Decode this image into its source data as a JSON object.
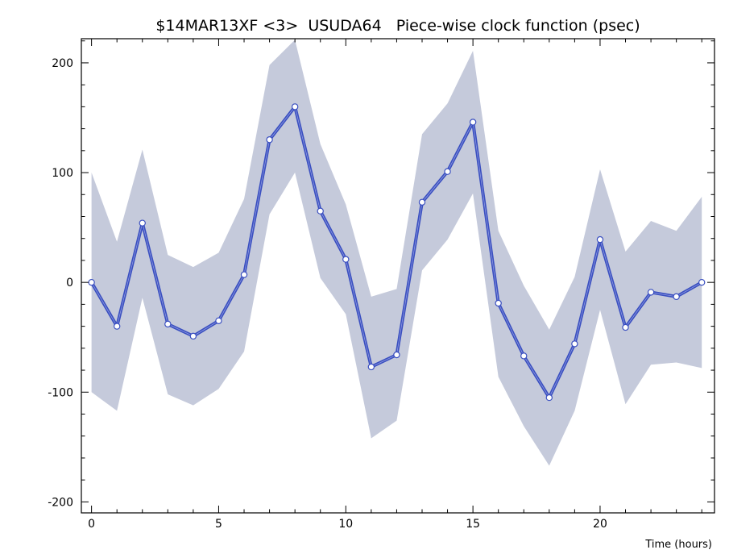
{
  "chart_data": {
    "type": "line",
    "title": "$14MAR13XF <3>  USUDA64   Piece-wise clock function (psec)",
    "xlabel": "Time (hours)",
    "ylabel": "",
    "xlim": [
      -0.4,
      24.5
    ],
    "ylim": [
      -210,
      222
    ],
    "x_ticks": [
      0,
      5,
      10,
      15,
      20
    ],
    "x_tick_labels": [
      "0",
      "5",
      "10",
      "15",
      "20"
    ],
    "y_ticks": [
      -200,
      -100,
      0,
      100,
      200
    ],
    "y_tick_labels": [
      "-200",
      "-100",
      "0",
      "100",
      "200"
    ],
    "grid": false,
    "legend": "none",
    "colors": {
      "line": "#3a4fc0",
      "band": "#c5cadb",
      "marker_fill": "#ffffff",
      "axis": "#000000"
    },
    "series": [
      {
        "x": [
          0,
          1,
          2,
          3,
          4,
          5,
          6,
          7,
          8,
          9,
          10,
          11,
          12,
          13,
          14,
          15,
          16,
          17,
          18,
          19,
          20,
          21,
          22,
          23,
          24
        ],
        "values": [
          0,
          -40,
          54,
          -38,
          -49,
          -35,
          7,
          130,
          160,
          65,
          21,
          -77,
          -66,
          73,
          101,
          146,
          -19,
          -67,
          -105,
          -56,
          39,
          -41,
          -9,
          -13,
          0
        ],
        "upper": [
          100,
          37,
          121,
          25,
          14,
          27,
          76,
          198,
          221,
          126,
          71,
          -13,
          -6,
          135,
          163,
          211,
          47,
          -3,
          -43,
          5,
          103,
          28,
          56,
          47,
          78
        ],
        "lower": [
          -100,
          -117,
          -14,
          -102,
          -112,
          -97,
          -63,
          62,
          100,
          4,
          -29,
          -142,
          -126,
          11,
          39,
          81,
          -86,
          -131,
          -167,
          -117,
          -25,
          -111,
          -75,
          -73,
          -78
        ]
      }
    ]
  }
}
